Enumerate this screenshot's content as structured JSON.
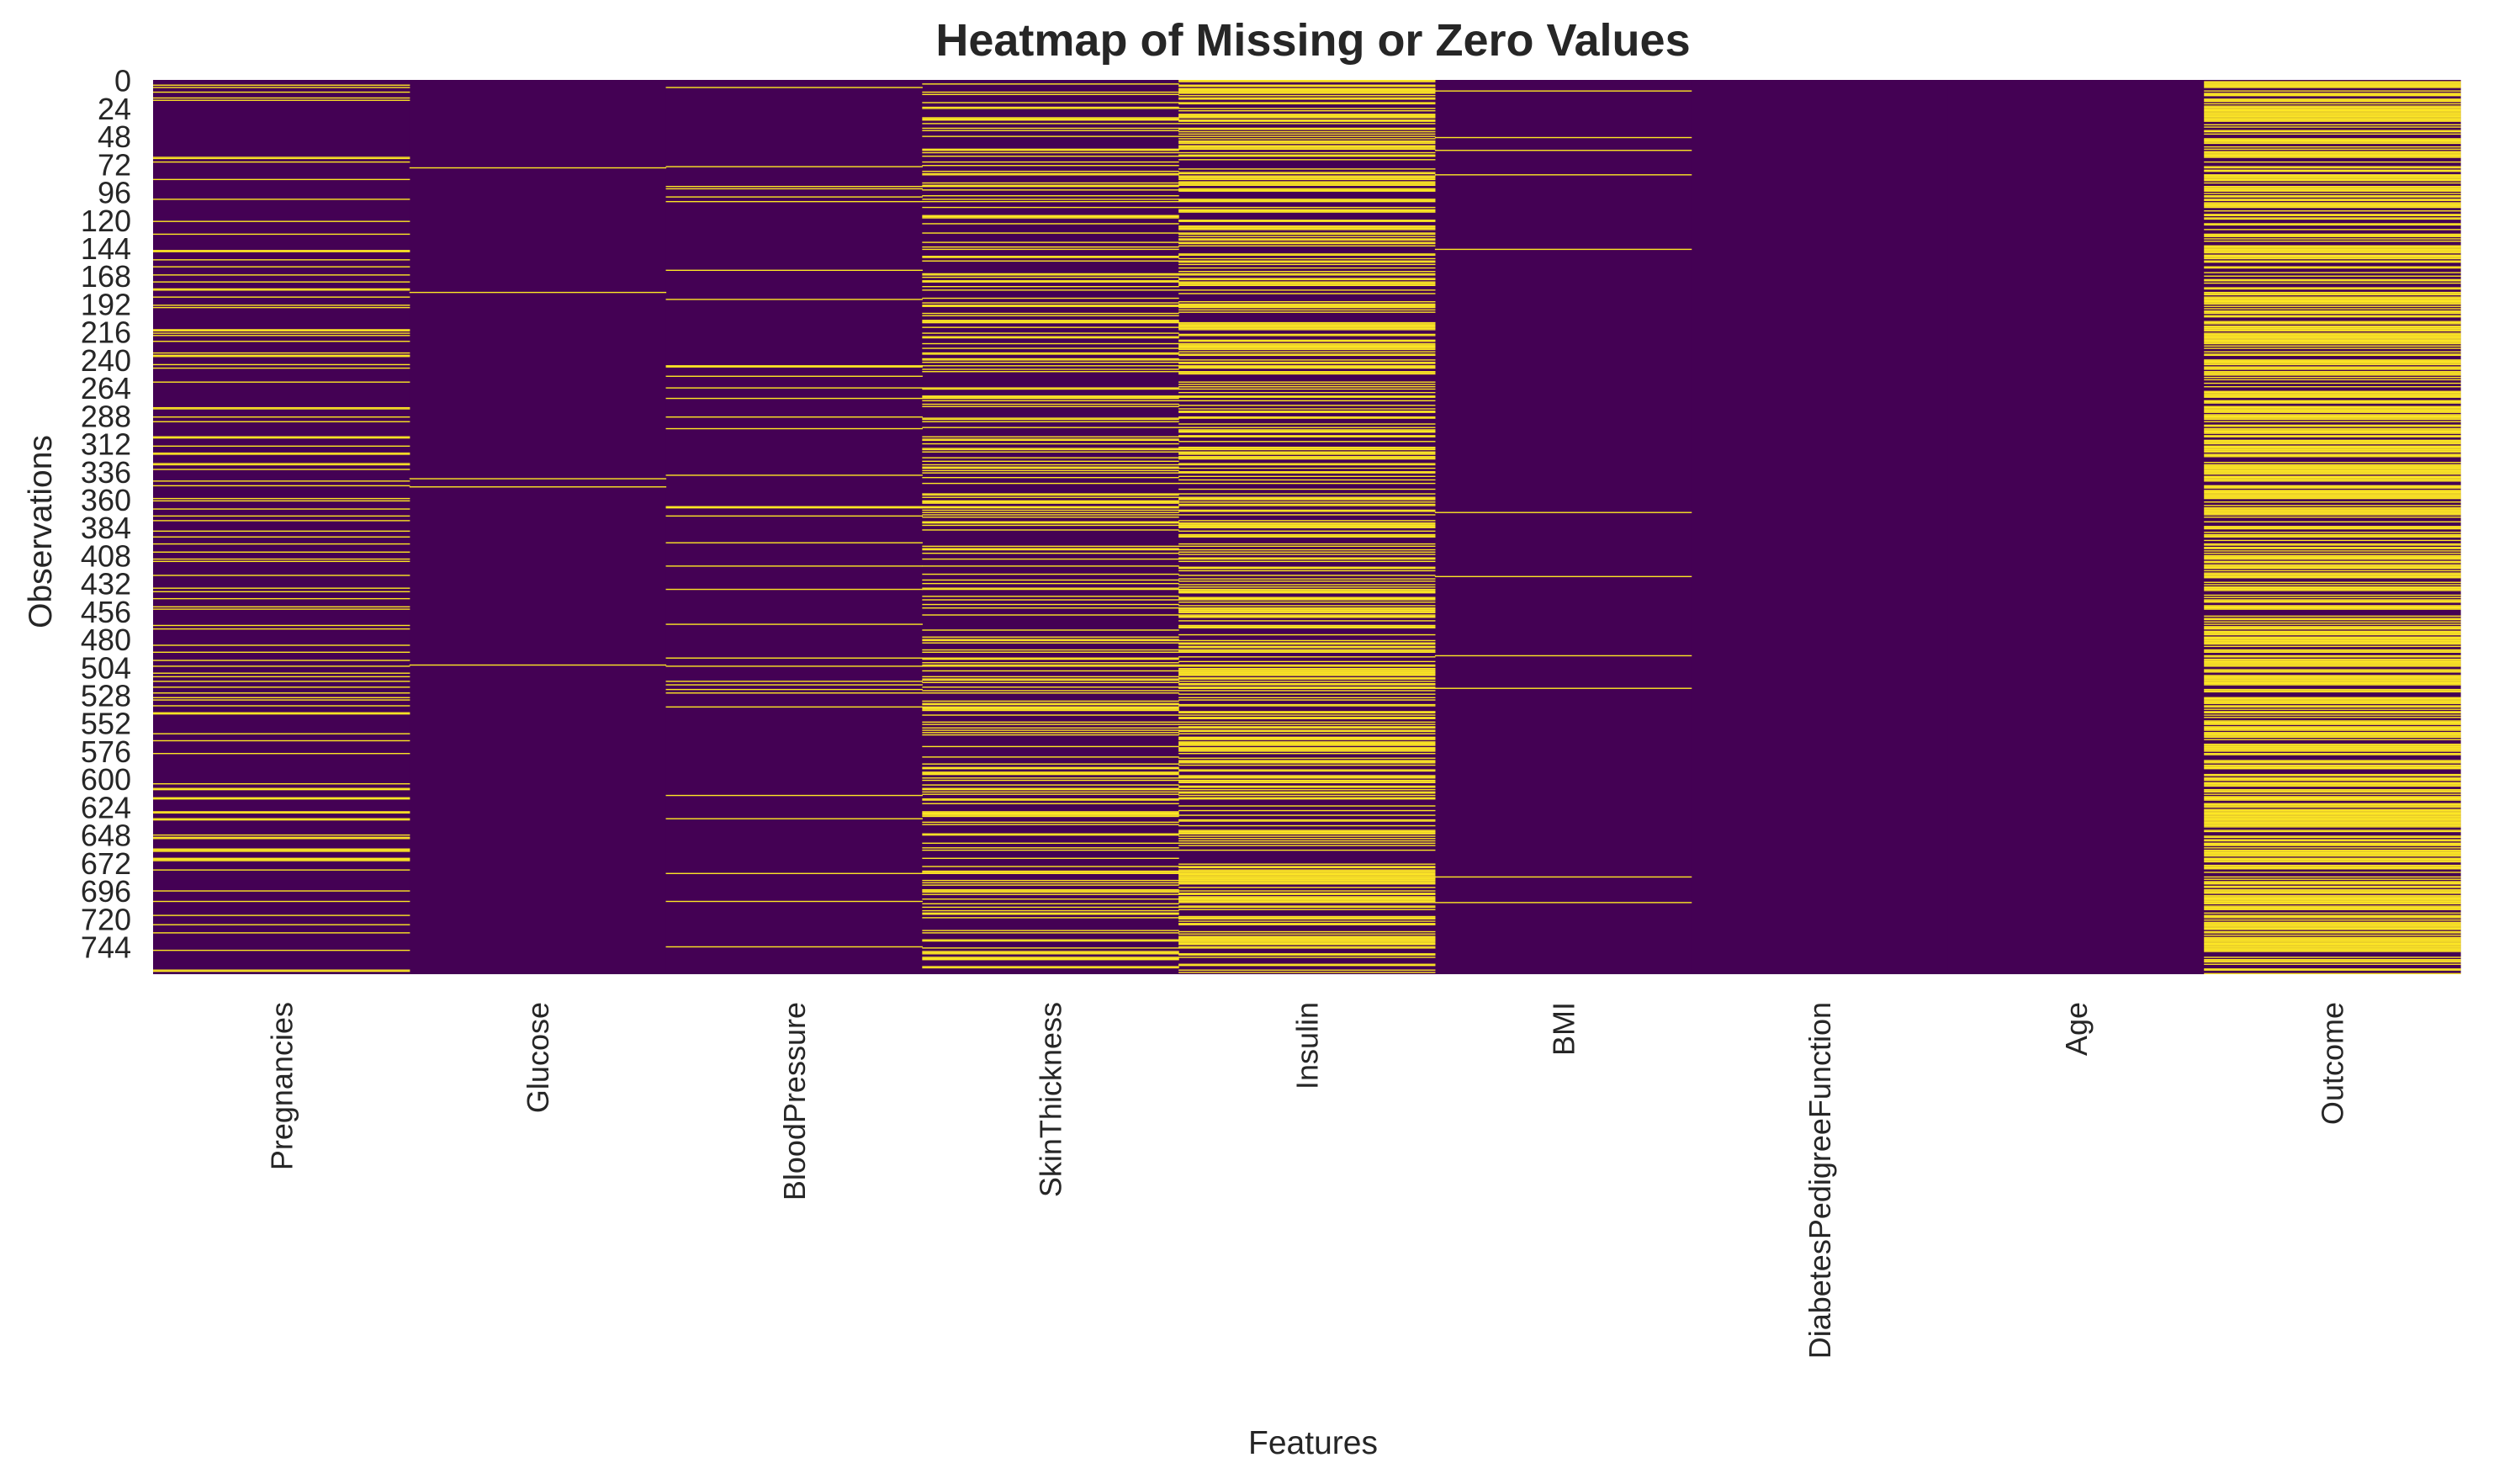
{
  "chart_data": {
    "type": "heatmap",
    "title": "Heatmap of Missing or Zero Values",
    "xlabel": "Features",
    "ylabel": "Observations",
    "columns": [
      "Pregnancies",
      "Glucose",
      "BloodPressure",
      "SkinThickness",
      "Insulin",
      "BMI",
      "DiabetesPedigreeFunction",
      "Age",
      "Outcome"
    ],
    "row_count": 768,
    "y_tick_labels": [
      "0",
      "24",
      "48",
      "72",
      "96",
      "120",
      "144",
      "168",
      "192",
      "216",
      "240",
      "264",
      "288",
      "312",
      "336",
      "360",
      "384",
      "408",
      "432",
      "456",
      "480",
      "504",
      "528",
      "552",
      "576",
      "600",
      "624",
      "648",
      "672",
      "696",
      "720",
      "744"
    ],
    "value_range": [
      0,
      1
    ],
    "colormap": "viridis",
    "colors": {
      "absent": "#440154",
      "present": "#fde725"
    },
    "legend": "none",
    "grid": false,
    "approx_zero_counts": {
      "Pregnancies": 111,
      "Glucose": 5,
      "BloodPressure": 35,
      "SkinThickness": 227,
      "Insulin": 374,
      "BMI": 11,
      "DiabetesPedigreeFunction": 0,
      "Age": 0,
      "Outcome": 500
    },
    "zero_rows": {
      "Glucose": [
        75,
        182,
        342,
        349,
        502
      ],
      "BMI": [
        9,
        49,
        60,
        81,
        145,
        371,
        426,
        494,
        522,
        684,
        706
      ],
      "DiabetesPedigreeFunction": [],
      "Age": []
    }
  }
}
